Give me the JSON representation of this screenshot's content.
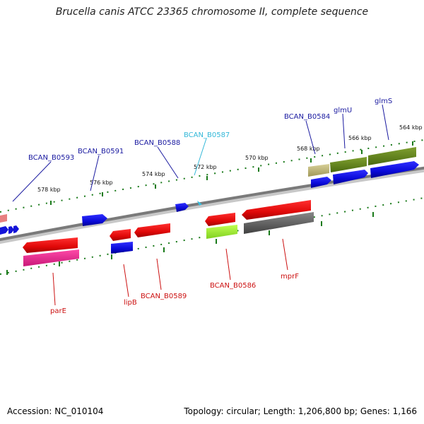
{
  "map": {
    "title": "Brucella canis ATCC 23365 chromosome II, complete sequence",
    "accession": "Accession: NC_010104",
    "topology": "Topology: circular; Length: 1,206,800 bp; Genes: 1,166"
  },
  "colors": {
    "backbone": "#808080",
    "tick": "#1a7a1a",
    "forward_label": "#1a1aa0",
    "reverse_label": "#cc1111",
    "highlight_label": "#33b8d8",
    "forward_cds": "#1414d8",
    "reverse_cds": "#e01010",
    "pink": "#e83090",
    "lime": "#a0f030",
    "olive": "#6a8a20",
    "khaki": "#c0b878",
    "gray": "#606060",
    "salmon": "#e88080",
    "cyan": "#33c0e0"
  },
  "tick_labels": [
    "578 kbp",
    "576 kbp",
    "574 kbp",
    "572 kbp",
    "570 kbp",
    "568 kbp",
    "566 kbp",
    "564 kbp"
  ],
  "upper_labels": [
    "BCAN_B0593",
    "BCAN_B0591",
    "BCAN_B0588",
    "BCAN_B0587",
    "BCAN_B0584",
    "glmU",
    "glmS"
  ],
  "lower_labels": [
    "parE",
    "lipB",
    "BCAN_B0589",
    "BCAN_B0586",
    "mprF"
  ]
}
